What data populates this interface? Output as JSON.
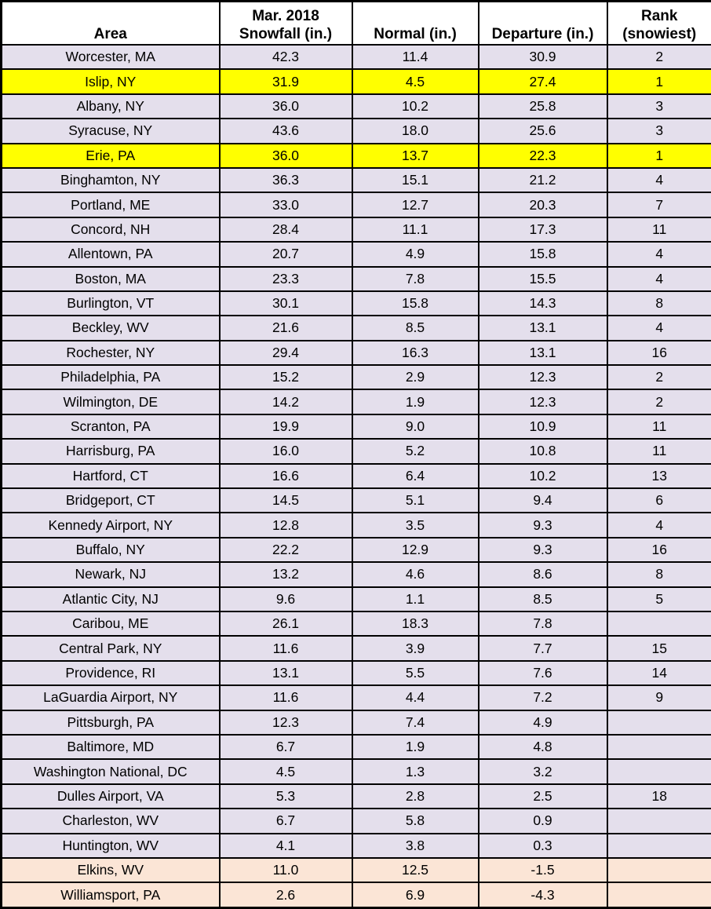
{
  "colors": {
    "row_default": "#E4DFEC",
    "row_record_yellow": "#FFFF00",
    "row_below_normal_peach": "#FBE5D6",
    "header_bg": "#FFFFFF",
    "border": "#000000",
    "text": "#000000"
  },
  "chart_data": {
    "type": "table",
    "columns": [
      {
        "id": "area",
        "label": "Area",
        "label_lines": [
          "Area"
        ]
      },
      {
        "id": "snowfall",
        "label": "Mar. 2018 Snowfall (in.)",
        "label_lines": [
          "Mar. 2018",
          "Snowfall (in.)"
        ]
      },
      {
        "id": "normal",
        "label": "Normal (in.)",
        "label_lines": [
          "Normal (in.)"
        ]
      },
      {
        "id": "departure",
        "label": "Departure (in.)",
        "label_lines": [
          "Departure (in.)"
        ]
      },
      {
        "id": "rank",
        "label": "Rank (snowiest)",
        "label_lines": [
          "Rank",
          "(snowiest)"
        ]
      }
    ],
    "rows": [
      {
        "area": "Worcester, MA",
        "snowfall": "42.3",
        "normal": "11.4",
        "departure": "30.9",
        "rank": "2",
        "highlight": "default"
      },
      {
        "area": "Islip, NY",
        "snowfall": "31.9",
        "normal": "4.5",
        "departure": "27.4",
        "rank": "1",
        "highlight": "yellow"
      },
      {
        "area": "Albany, NY",
        "snowfall": "36.0",
        "normal": "10.2",
        "departure": "25.8",
        "rank": "3",
        "highlight": "default"
      },
      {
        "area": "Syracuse, NY",
        "snowfall": "43.6",
        "normal": "18.0",
        "departure": "25.6",
        "rank": "3",
        "highlight": "default"
      },
      {
        "area": "Erie, PA",
        "snowfall": "36.0",
        "normal": "13.7",
        "departure": "22.3",
        "rank": "1",
        "highlight": "yellow"
      },
      {
        "area": "Binghamton, NY",
        "snowfall": "36.3",
        "normal": "15.1",
        "departure": "21.2",
        "rank": "4",
        "highlight": "default"
      },
      {
        "area": "Portland, ME",
        "snowfall": "33.0",
        "normal": "12.7",
        "departure": "20.3",
        "rank": "7",
        "highlight": "default"
      },
      {
        "area": "Concord, NH",
        "snowfall": "28.4",
        "normal": "11.1",
        "departure": "17.3",
        "rank": "11",
        "highlight": "default"
      },
      {
        "area": "Allentown, PA",
        "snowfall": "20.7",
        "normal": "4.9",
        "departure": "15.8",
        "rank": "4",
        "highlight": "default"
      },
      {
        "area": "Boston, MA",
        "snowfall": "23.3",
        "normal": "7.8",
        "departure": "15.5",
        "rank": "4",
        "highlight": "default"
      },
      {
        "area": "Burlington, VT",
        "snowfall": "30.1",
        "normal": "15.8",
        "departure": "14.3",
        "rank": "8",
        "highlight": "default"
      },
      {
        "area": "Beckley, WV",
        "snowfall": "21.6",
        "normal": "8.5",
        "departure": "13.1",
        "rank": "4",
        "highlight": "default"
      },
      {
        "area": "Rochester, NY",
        "snowfall": "29.4",
        "normal": "16.3",
        "departure": "13.1",
        "rank": "16",
        "highlight": "default"
      },
      {
        "area": "Philadelphia, PA",
        "snowfall": "15.2",
        "normal": "2.9",
        "departure": "12.3",
        "rank": "2",
        "highlight": "default"
      },
      {
        "area": "Wilmington, DE",
        "snowfall": "14.2",
        "normal": "1.9",
        "departure": "12.3",
        "rank": "2",
        "highlight": "default"
      },
      {
        "area": "Scranton, PA",
        "snowfall": "19.9",
        "normal": "9.0",
        "departure": "10.9",
        "rank": "11",
        "highlight": "default"
      },
      {
        "area": "Harrisburg, PA",
        "snowfall": "16.0",
        "normal": "5.2",
        "departure": "10.8",
        "rank": "11",
        "highlight": "default"
      },
      {
        "area": "Hartford, CT",
        "snowfall": "16.6",
        "normal": "6.4",
        "departure": "10.2",
        "rank": "13",
        "highlight": "default"
      },
      {
        "area": "Bridgeport, CT",
        "snowfall": "14.5",
        "normal": "5.1",
        "departure": "9.4",
        "rank": "6",
        "highlight": "default"
      },
      {
        "area": "Kennedy Airport, NY",
        "snowfall": "12.8",
        "normal": "3.5",
        "departure": "9.3",
        "rank": "4",
        "highlight": "default"
      },
      {
        "area": "Buffalo, NY",
        "snowfall": "22.2",
        "normal": "12.9",
        "departure": "9.3",
        "rank": "16",
        "highlight": "default"
      },
      {
        "area": "Newark, NJ",
        "snowfall": "13.2",
        "normal": "4.6",
        "departure": "8.6",
        "rank": "8",
        "highlight": "default"
      },
      {
        "area": "Atlantic City, NJ",
        "snowfall": "9.6",
        "normal": "1.1",
        "departure": "8.5",
        "rank": "5",
        "highlight": "default"
      },
      {
        "area": "Caribou, ME",
        "snowfall": "26.1",
        "normal": "18.3",
        "departure": "7.8",
        "rank": "",
        "highlight": "default"
      },
      {
        "area": "Central Park, NY",
        "snowfall": "11.6",
        "normal": "3.9",
        "departure": "7.7",
        "rank": "15",
        "highlight": "default"
      },
      {
        "area": "Providence, RI",
        "snowfall": "13.1",
        "normal": "5.5",
        "departure": "7.6",
        "rank": "14",
        "highlight": "default"
      },
      {
        "area": "LaGuardia Airport, NY",
        "snowfall": "11.6",
        "normal": "4.4",
        "departure": "7.2",
        "rank": "9",
        "highlight": "default"
      },
      {
        "area": "Pittsburgh, PA",
        "snowfall": "12.3",
        "normal": "7.4",
        "departure": "4.9",
        "rank": "",
        "highlight": "default"
      },
      {
        "area": "Baltimore, MD",
        "snowfall": "6.7",
        "normal": "1.9",
        "departure": "4.8",
        "rank": "",
        "highlight": "default"
      },
      {
        "area": "Washington National, DC",
        "snowfall": "4.5",
        "normal": "1.3",
        "departure": "3.2",
        "rank": "",
        "highlight": "default"
      },
      {
        "area": "Dulles Airport, VA",
        "snowfall": "5.3",
        "normal": "2.8",
        "departure": "2.5",
        "rank": "18",
        "highlight": "default"
      },
      {
        "area": "Charleston, WV",
        "snowfall": "6.7",
        "normal": "5.8",
        "departure": "0.9",
        "rank": "",
        "highlight": "default"
      },
      {
        "area": "Huntington, WV",
        "snowfall": "4.1",
        "normal": "3.8",
        "departure": "0.3",
        "rank": "",
        "highlight": "default"
      },
      {
        "area": "Elkins, WV",
        "snowfall": "11.0",
        "normal": "12.5",
        "departure": "-1.5",
        "rank": "",
        "highlight": "peach"
      },
      {
        "area": "Williamsport, PA",
        "snowfall": "2.6",
        "normal": "6.9",
        "departure": "-4.3",
        "rank": "",
        "highlight": "peach"
      }
    ]
  }
}
